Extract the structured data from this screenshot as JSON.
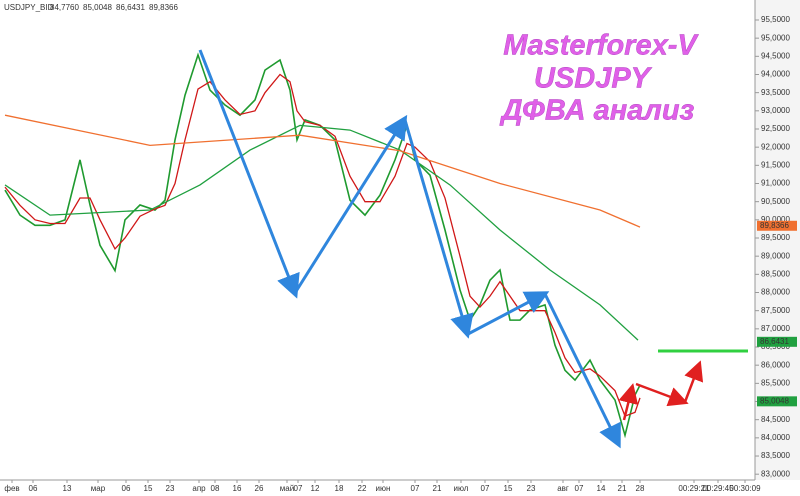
{
  "chart_data": {
    "type": "line",
    "header": {
      "symbol": "USDJPY_BID",
      "values": [
        {
          "label": "84,7760",
          "color": "#2020d0"
        },
        {
          "label": "85,0048",
          "color": "#d02020"
        },
        {
          "label": "86,6431",
          "color": "#20a040"
        },
        {
          "label": "89,8366",
          "color": "#f07030"
        }
      ]
    },
    "title": [
      "Masterforex-V",
      "USDJPY",
      "ДФВА анализ"
    ],
    "xlim": [
      0,
      151
    ],
    "ylim": [
      82.84,
      96.05
    ],
    "series": [
      {
        "color": "#1f9a2f",
        "x": [
          1,
          4,
          7,
          10,
          13,
          16,
          18,
          20,
          23,
          25,
          28,
          31,
          33,
          35,
          37,
          39.6,
          42,
          45,
          48,
          51,
          53,
          56,
          58,
          59.4,
          61,
          64,
          67,
          70,
          73,
          76,
          79,
          81.4,
          83,
          86,
          89,
          92,
          94,
          96,
          98,
          100,
          102,
          104,
          106,
          109,
          111,
          113,
          115,
          118,
          120,
          123,
          125,
          127,
          128
        ],
        "values": [
          90.82,
          90.13,
          89.85,
          89.85,
          90.0,
          91.65,
          90.41,
          89.3,
          88.6,
          90.0,
          90.41,
          90.27,
          90.54,
          92.2,
          93.43,
          94.54,
          93.57,
          93.16,
          92.88,
          93.3,
          94.12,
          94.4,
          93.57,
          92.2,
          92.75,
          92.6,
          92.2,
          90.54,
          90.13,
          90.68,
          91.65,
          92.6,
          91.65,
          91.23,
          89.72,
          88.07,
          87.24,
          87.66,
          88.34,
          88.62,
          87.24,
          87.24,
          87.52,
          87.66,
          86.55,
          85.86,
          85.59,
          86.14,
          85.59,
          85.04,
          84.07,
          85.18,
          85.45
        ]
      },
      {
        "color": "#d01818",
        "x": [
          1,
          4,
          7,
          10,
          13,
          16,
          18,
          20,
          23,
          25,
          28,
          31,
          33,
          35,
          37,
          39.6,
          42,
          45,
          48,
          51,
          53,
          56,
          58,
          59.4,
          61,
          64,
          67,
          70,
          73,
          76,
          79,
          81.4,
          83,
          86,
          89,
          92,
          94,
          96,
          98,
          100,
          102,
          104,
          106,
          109,
          111,
          113,
          115,
          118,
          120,
          123,
          125,
          127,
          128
        ],
        "values": [
          90.9,
          90.4,
          90.0,
          89.9,
          89.9,
          90.6,
          90.6,
          90.0,
          89.2,
          89.5,
          90.1,
          90.3,
          90.4,
          91.0,
          92.2,
          93.6,
          93.8,
          93.3,
          92.9,
          93.0,
          93.5,
          94.0,
          93.8,
          93.0,
          92.7,
          92.6,
          92.3,
          91.2,
          90.5,
          90.5,
          91.2,
          92.1,
          92.0,
          91.6,
          90.6,
          89.0,
          87.9,
          87.6,
          87.9,
          88.3,
          87.9,
          87.5,
          87.5,
          87.5,
          86.9,
          86.2,
          85.8,
          85.9,
          85.7,
          85.3,
          84.6,
          84.7,
          85.1
        ]
      },
      {
        "color": "#20a040",
        "x": [
          1,
          10,
          30,
          40,
          50,
          60,
          70,
          80,
          90,
          100,
          110,
          120,
          127.6
        ],
        "values": [
          90.96,
          90.13,
          90.27,
          90.96,
          91.92,
          92.6,
          92.47,
          91.92,
          90.96,
          89.72,
          88.62,
          87.66,
          86.69
        ]
      },
      {
        "color": "#f07030",
        "x": [
          1,
          30,
          60,
          80,
          100,
          120,
          128
        ],
        "values": [
          92.88,
          92.05,
          92.33,
          91.9,
          91.0,
          90.27,
          89.8
        ]
      }
    ],
    "level": {
      "value": 86.39,
      "x": [
        131.6,
        149.6
      ],
      "color": "#30d040"
    },
    "markers": [
      {
        "value": 89.8366,
        "label": "89,8366",
        "color": "#f07030"
      },
      {
        "value": 86.6431,
        "label": "86,6431",
        "color": "#20a040"
      },
      {
        "value": 85.0048,
        "label": "85,0048",
        "color": "#20a040"
      }
    ],
    "yticks": [
      {
        "value": 95.5,
        "label": "95,5000"
      },
      {
        "value": 95.0,
        "label": "95,0000"
      },
      {
        "value": 94.5,
        "label": "94,5000"
      },
      {
        "value": 94.0,
        "label": "94,0000"
      },
      {
        "value": 93.5,
        "label": "93,5000"
      },
      {
        "value": 93.0,
        "label": "93,0000"
      },
      {
        "value": 92.5,
        "label": "92,5000"
      },
      {
        "value": 92.0,
        "label": "92,0000"
      },
      {
        "value": 91.5,
        "label": "91,5000"
      },
      {
        "value": 91.0,
        "label": "91,0000"
      },
      {
        "value": 90.5,
        "label": "90,5000"
      },
      {
        "value": 90.0,
        "label": "90,0000"
      },
      {
        "value": 89.5,
        "label": "89,5000"
      },
      {
        "value": 89.0,
        "label": "89,0000"
      },
      {
        "value": 88.5,
        "label": "88,5000"
      },
      {
        "value": 88.0,
        "label": "88,0000"
      },
      {
        "value": 87.5,
        "label": "87,5000"
      },
      {
        "value": 87.0,
        "label": "87,0000"
      },
      {
        "value": 86.5,
        "label": "86,5000"
      },
      {
        "value": 86.0,
        "label": "86,0000"
      },
      {
        "value": 85.5,
        "label": "85,5000"
      },
      {
        "value": 85.0,
        "label": "85,0000"
      },
      {
        "value": 84.5,
        "label": "84,5000"
      },
      {
        "value": 84.0,
        "label": "84,0000"
      },
      {
        "value": 83.5,
        "label": "83,5000"
      },
      {
        "value": 83.0,
        "label": "83,0000"
      }
    ],
    "xticks": [
      {
        "value": 2.4,
        "label": "фев"
      },
      {
        "value": 6.6,
        "label": "06"
      },
      {
        "value": 13.4,
        "label": "13"
      },
      {
        "value": 19.6,
        "label": "мар"
      },
      {
        "value": 25.2,
        "label": "06"
      },
      {
        "value": 29.6,
        "label": "15"
      },
      {
        "value": 34,
        "label": "23"
      },
      {
        "value": 39.8,
        "label": "апр"
      },
      {
        "value": 43,
        "label": "08"
      },
      {
        "value": 47.4,
        "label": "16"
      },
      {
        "value": 51.8,
        "label": "26"
      },
      {
        "value": 57.4,
        "label": "май"
      },
      {
        "value": 59.6,
        "label": "07"
      },
      {
        "value": 63,
        "label": "12"
      },
      {
        "value": 67.8,
        "label": "18"
      },
      {
        "value": 72.4,
        "label": "22"
      },
      {
        "value": 76.6,
        "label": "июн"
      },
      {
        "value": 83,
        "label": "07"
      },
      {
        "value": 87.4,
        "label": "21"
      },
      {
        "value": 92.2,
        "label": "июл"
      },
      {
        "value": 97,
        "label": "07"
      },
      {
        "value": 101.6,
        "label": "15"
      },
      {
        "value": 106.2,
        "label": "23"
      },
      {
        "value": 112.6,
        "label": "авг"
      },
      {
        "value": 115.8,
        "label": "07"
      },
      {
        "value": 120.2,
        "label": "14"
      },
      {
        "value": 124.4,
        "label": "21"
      },
      {
        "value": 128,
        "label": "28"
      },
      {
        "value": 138.8,
        "label": "00:29:21"
      },
      {
        "value": 143.6,
        "label": "00:29:45"
      },
      {
        "value": 149,
        "label": "00:30:09"
      }
    ]
  }
}
